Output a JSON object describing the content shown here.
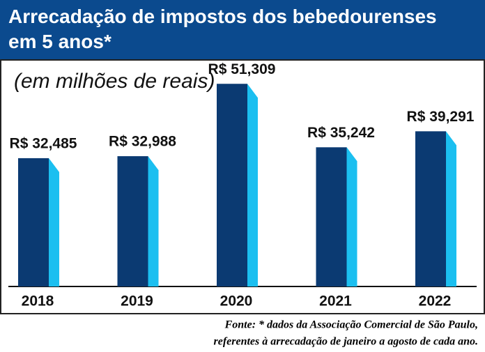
{
  "chart_data": {
    "type": "bar",
    "title": "Arrecadação de impostos dos bebedourenses em 5 anos*",
    "subtitle": "(em milhões de reais)",
    "categories": [
      "2018",
      "2019",
      "2020",
      "2021",
      "2022"
    ],
    "values": [
      32.485,
      32.988,
      51.309,
      35.242,
      39.291
    ],
    "value_labels": [
      "R$ 32,485",
      "R$ 32,988",
      "R$ 51,309",
      "R$ 35,242",
      "R$ 39,291"
    ],
    "color": "#0b3a72",
    "side_color": "#1bbff0",
    "ylim": [
      0,
      60
    ],
    "source": [
      "Fonte: * dados da Associação Comercial de São Paulo,",
      "referentes à arrecadação de janeiro a agosto de cada ano."
    ]
  }
}
